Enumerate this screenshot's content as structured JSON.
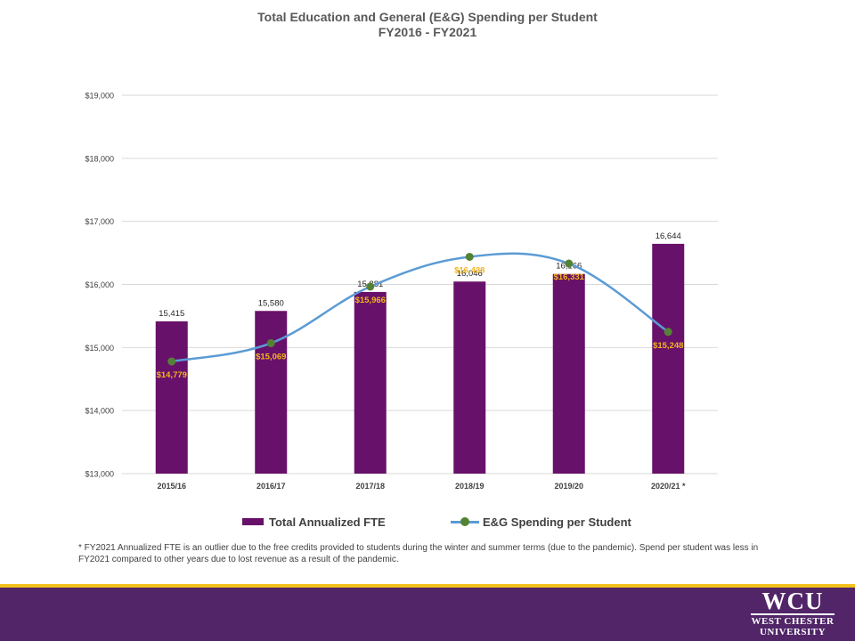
{
  "chart_data": {
    "type": "bar",
    "title": "Total Education and General (E&G) Spending per Student",
    "subtitle": "FY2016 - FY2021",
    "categories": [
      "2015/16",
      "2016/17",
      "2017/18",
      "2018/19",
      "2019/20",
      "2020/21 *"
    ],
    "y_ticks": [
      "$19,000",
      "$18,000",
      "$17,000",
      "$16,000",
      "$15,000",
      "$14,000",
      "$13,000"
    ],
    "ylim": [
      13000,
      19000
    ],
    "grid": true,
    "legend_position": "bottom",
    "series": [
      {
        "name": "Total Annualized FTE",
        "type": "bar",
        "color": "#68116a",
        "values": [
          15415,
          15580,
          15881,
          16046,
          16166,
          16644
        ],
        "data_labels": [
          "15,415",
          "15,580",
          "15,881",
          "16,046",
          "16,166",
          "16,644"
        ]
      },
      {
        "name": "E&G Spending per Student",
        "type": "line",
        "color": "#5b9bd5",
        "marker_color": "#548235",
        "label_color": "#f3b51b",
        "values": [
          14779,
          15069,
          15966,
          16438,
          16331,
          15248
        ],
        "data_labels": [
          "$14,779",
          "$15,069",
          "$15,966",
          "$16,438",
          "$16,331",
          "$15,248"
        ]
      }
    ]
  },
  "footnote": "* FY2021 Annualized FTE is an outlier due to the free credits provided to students during the winter and summer terms (due to the pandemic). Spend per student was less in FY2021 compared to other years due to lost revenue as a result of the pandemic.",
  "logo": {
    "mark": "WCU",
    "line1": "WEST CHESTER",
    "line2": "UNIVERSITY"
  },
  "colors": {
    "band": "#512568",
    "stripe": "#f3c11b"
  }
}
